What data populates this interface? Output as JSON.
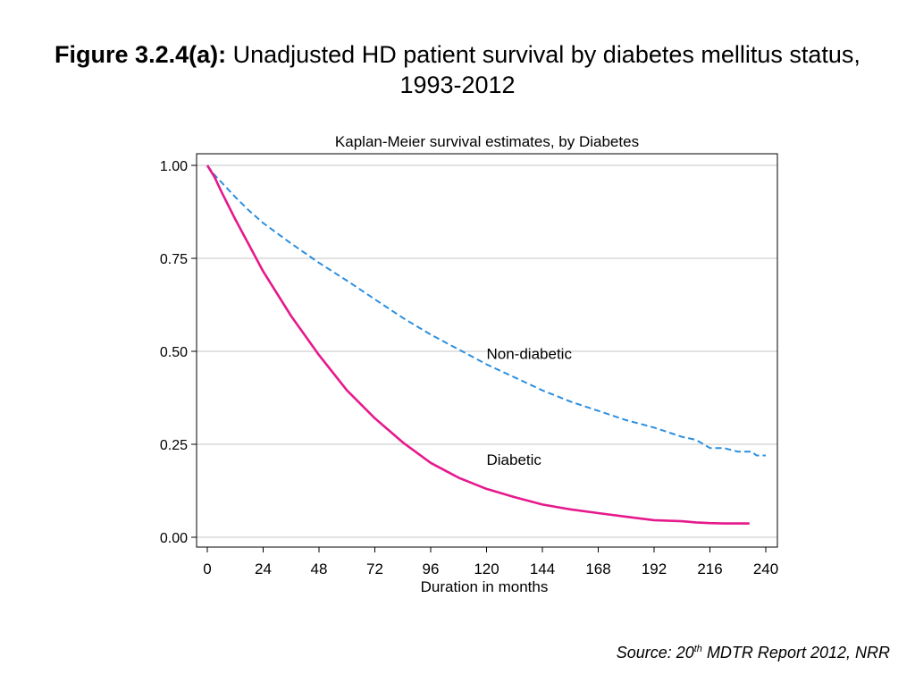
{
  "figure": {
    "label": "Figure 3.2.4(a):",
    "title_text": " Unadjusted HD patient survival by diabetes mellitus status, 1993-2012"
  },
  "source": {
    "prefix": "Source: 20",
    "superscript": "th",
    "suffix": " MDTR Report 2012, NRR"
  },
  "chart_data": {
    "type": "line",
    "title": "Kaplan-Meier survival estimates, by Diabetes",
    "xlabel": "Duration in months",
    "ylabel": "",
    "xlim": [
      0,
      240
    ],
    "ylim": [
      0,
      1
    ],
    "xticks": [
      0,
      24,
      48,
      72,
      96,
      120,
      144,
      168,
      192,
      216,
      240
    ],
    "yticks": [
      0.0,
      0.25,
      0.5,
      0.75,
      1.0
    ],
    "ytick_labels": [
      "0.00",
      "0.25",
      "0.50",
      "0.75",
      "1.00"
    ],
    "grid": "horizontal",
    "series": [
      {
        "name": "Non-diabetic",
        "color": "#2b8fe0",
        "style": "dashed",
        "x": [
          0,
          3,
          6,
          12,
          18,
          24,
          36,
          48,
          60,
          72,
          84,
          96,
          108,
          120,
          132,
          144,
          156,
          168,
          180,
          192,
          204,
          210,
          216,
          222,
          228,
          234,
          236,
          240
        ],
        "y": [
          1.0,
          0.975,
          0.955,
          0.915,
          0.878,
          0.845,
          0.79,
          0.738,
          0.69,
          0.64,
          0.59,
          0.545,
          0.505,
          0.465,
          0.43,
          0.395,
          0.365,
          0.34,
          0.315,
          0.295,
          0.27,
          0.262,
          0.24,
          0.24,
          0.23,
          0.23,
          0.22,
          0.22
        ]
      },
      {
        "name": "Diabetic",
        "color": "#e6198c",
        "style": "solid",
        "x": [
          0,
          3,
          6,
          12,
          18,
          24,
          36,
          48,
          60,
          72,
          84,
          96,
          108,
          120,
          132,
          144,
          156,
          168,
          180,
          192,
          204,
          210,
          216,
          222,
          228,
          233
        ],
        "y": [
          1.0,
          0.97,
          0.93,
          0.855,
          0.785,
          0.715,
          0.595,
          0.49,
          0.395,
          0.32,
          0.255,
          0.2,
          0.16,
          0.13,
          0.108,
          0.088,
          0.075,
          0.065,
          0.055,
          0.046,
          0.043,
          0.04,
          0.038,
          0.037,
          0.037,
          0.037
        ]
      }
    ],
    "annotations": [
      {
        "text": "Non-diabetic",
        "x": 120,
        "y": 0.48
      },
      {
        "text": "Diabetic",
        "x": 120,
        "y": 0.195
      }
    ]
  }
}
